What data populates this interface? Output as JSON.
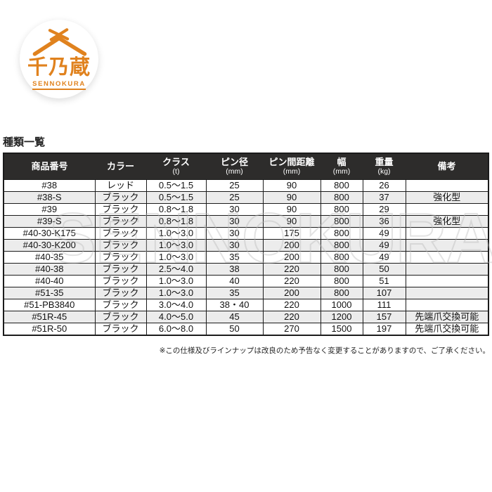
{
  "logo": {
    "brand_jp": "千乃蔵",
    "brand_en": "SENNOKURA",
    "accent_color": "#e0821e"
  },
  "section_title": "種類一覧",
  "watermark": "SENNOKURA",
  "table": {
    "columns": [
      {
        "label": "商品番号",
        "unit": ""
      },
      {
        "label": "カラー",
        "unit": ""
      },
      {
        "label": "クラス",
        "unit": "(t)"
      },
      {
        "label": "ピン径",
        "unit": "(mm)"
      },
      {
        "label": "ピン間距離",
        "unit": "(mm)"
      },
      {
        "label": "幅",
        "unit": "(mm)"
      },
      {
        "label": "重量",
        "unit": "(kg)"
      },
      {
        "label": "備考",
        "unit": ""
      }
    ],
    "rows": [
      [
        "#38",
        "レッド",
        "0.5〜1.5",
        "25",
        "90",
        "800",
        "26",
        ""
      ],
      [
        "#38-S",
        "ブラック",
        "0.5〜1.5",
        "25",
        "90",
        "800",
        "37",
        "強化型"
      ],
      [
        "#39",
        "ブラック",
        "0.8〜1.8",
        "30",
        "90",
        "800",
        "29",
        ""
      ],
      [
        "#39-S",
        "ブラック",
        "0.8〜1.8",
        "30",
        "90",
        "800",
        "36",
        "強化型"
      ],
      [
        "#40-30-K175",
        "ブラック",
        "1.0〜3.0",
        "30",
        "175",
        "800",
        "49",
        ""
      ],
      [
        "#40-30-K200",
        "ブラック",
        "1.0〜3.0",
        "30",
        "200",
        "800",
        "49",
        ""
      ],
      [
        "#40-35",
        "ブラック",
        "1.0〜3.0",
        "35",
        "200",
        "800",
        "49",
        ""
      ],
      [
        "#40-38",
        "ブラック",
        "2.5〜4.0",
        "38",
        "220",
        "800",
        "50",
        ""
      ],
      [
        "#40-40",
        "ブラック",
        "1.0〜3.0",
        "40",
        "220",
        "800",
        "51",
        ""
      ],
      [
        "#51-35",
        "ブラック",
        "1.0〜3.0",
        "35",
        "200",
        "800",
        "107",
        ""
      ],
      [
        "#51-PB3840",
        "ブラック",
        "3.0〜4.0",
        "38・40",
        "220",
        "1000",
        "111",
        ""
      ],
      [
        "#51R-45",
        "ブラック",
        "4.0〜5.0",
        "45",
        "220",
        "1200",
        "157",
        "先端爪交換可能"
      ],
      [
        "#51R-50",
        "ブラック",
        "6.0〜8.0",
        "50",
        "270",
        "1500",
        "197",
        "先端爪交換可能"
      ]
    ]
  },
  "footnote": "※この仕様及びラインナップは改良のため予告なく変更することがありますので、ご了承ください。",
  "colors": {
    "header_bg": "#2d2c2b",
    "header_text": "#ffffff",
    "row_alt_bg": "#ececec",
    "border": "#1b1b1b",
    "logo_orange": "#e0821e"
  }
}
